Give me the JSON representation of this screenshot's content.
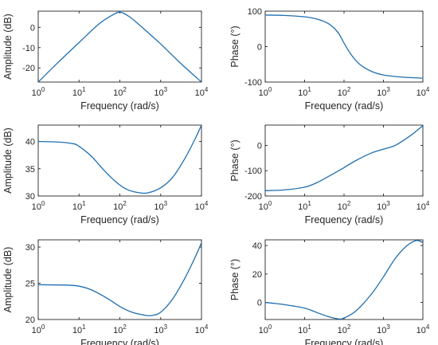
{
  "colors": {
    "series": "#1f6fb0",
    "axis": "#262626"
  },
  "chart_data": [
    {
      "type": "line",
      "xlabel": "Frequency (rad/s)",
      "ylabel": "Amplitude (dB)",
      "xscale": "log",
      "xlim": [
        1,
        10000
      ],
      "ylim": [
        -27,
        8
      ],
      "grid": false,
      "xticks": [
        {
          "value": 1,
          "base": "10",
          "exp": "0"
        },
        {
          "value": 10,
          "base": "10",
          "exp": "1"
        },
        {
          "value": 100,
          "base": "10",
          "exp": "2"
        },
        {
          "value": 1000,
          "base": "10",
          "exp": "3"
        },
        {
          "value": 10000,
          "base": "10",
          "exp": "4"
        }
      ],
      "yticks": [
        {
          "value": -20,
          "label": "-20"
        },
        {
          "value": -10,
          "label": "-10"
        },
        {
          "value": 0,
          "label": "0"
        }
      ],
      "series": [
        {
          "x": [
            1,
            3,
            10,
            30,
            60,
            100,
            170,
            300,
            1000,
            3000,
            10000
          ],
          "y": [
            -27,
            -17.5,
            -7.5,
            1.5,
            5.6,
            7.5,
            5.3,
            1.2,
            -8.2,
            -17.5,
            -27
          ]
        }
      ]
    },
    {
      "type": "line",
      "xlabel": "Frequency (rad/s)",
      "ylabel": "Phase (°)",
      "xscale": "log",
      "xlim": [
        1,
        10000
      ],
      "ylim": [
        -100,
        100
      ],
      "grid": false,
      "xticks": [
        {
          "value": 1,
          "base": "10",
          "exp": "0"
        },
        {
          "value": 10,
          "base": "10",
          "exp": "1"
        },
        {
          "value": 100,
          "base": "10",
          "exp": "2"
        },
        {
          "value": 1000,
          "base": "10",
          "exp": "3"
        },
        {
          "value": 10000,
          "base": "10",
          "exp": "4"
        }
      ],
      "yticks": [
        {
          "value": -100,
          "label": "-100"
        },
        {
          "value": 0,
          "label": "0"
        },
        {
          "value": 100,
          "label": "100"
        }
      ],
      "series": [
        {
          "x": [
            1,
            3,
            10,
            20,
            40,
            70,
            100,
            150,
            250,
            500,
            1000,
            3000,
            10000
          ],
          "y": [
            89,
            88,
            84,
            78,
            65,
            40,
            10,
            -22,
            -50,
            -70,
            -80,
            -86,
            -89
          ]
        }
      ]
    },
    {
      "type": "line",
      "xlabel": "Frequency (rad/s)",
      "ylabel": "Amplitude (dB)",
      "xscale": "log",
      "xlim": [
        1,
        10000
      ],
      "ylim": [
        30,
        43
      ],
      "grid": false,
      "xticks": [
        {
          "value": 1,
          "base": "10",
          "exp": "0"
        },
        {
          "value": 10,
          "base": "10",
          "exp": "1"
        },
        {
          "value": 100,
          "base": "10",
          "exp": "2"
        },
        {
          "value": 1000,
          "base": "10",
          "exp": "3"
        },
        {
          "value": 10000,
          "base": "10",
          "exp": "4"
        }
      ],
      "yticks": [
        {
          "value": 30,
          "label": "30"
        },
        {
          "value": 35,
          "label": "35"
        },
        {
          "value": 40,
          "label": "40"
        }
      ],
      "series": [
        {
          "x": [
            1,
            3,
            7,
            10,
            20,
            40,
            80,
            150,
            300,
            500,
            1000,
            2000,
            4000,
            7000,
            10000
          ],
          "y": [
            40,
            39.9,
            39.6,
            39.1,
            37.3,
            34.8,
            32.6,
            31.2,
            30.6,
            30.6,
            31.5,
            33.5,
            37.0,
            40.5,
            43
          ]
        }
      ]
    },
    {
      "type": "line",
      "xlabel": "Frequency (rad/s)",
      "ylabel": "Phase (°)",
      "xscale": "log",
      "xlim": [
        1,
        10000
      ],
      "ylim": [
        -200,
        80
      ],
      "grid": false,
      "xticks": [
        {
          "value": 1,
          "base": "10",
          "exp": "0"
        },
        {
          "value": 10,
          "base": "10",
          "exp": "1"
        },
        {
          "value": 100,
          "base": "10",
          "exp": "2"
        },
        {
          "value": 1000,
          "base": "10",
          "exp": "3"
        },
        {
          "value": 10000,
          "base": "10",
          "exp": "4"
        }
      ],
      "yticks": [
        {
          "value": -200,
          "label": "-200"
        },
        {
          "value": -100,
          "label": "-100"
        },
        {
          "value": 0,
          "label": "0"
        }
      ],
      "series": [
        {
          "x": [
            1,
            3,
            10,
            20,
            40,
            70,
            100,
            200,
            500,
            1000,
            2000,
            5000,
            10000
          ],
          "y": [
            -179,
            -176,
            -165,
            -148,
            -123,
            -102,
            -88,
            -60,
            -30,
            -15,
            0,
            40,
            78
          ]
        }
      ]
    },
    {
      "type": "line",
      "xlabel": "Frequency (rad/s)",
      "ylabel": "Amplitude (dB)",
      "xscale": "log",
      "xlim": [
        1,
        10000
      ],
      "ylim": [
        20,
        31
      ],
      "grid": false,
      "xticks": [
        {
          "value": 1,
          "base": "10",
          "exp": "0"
        },
        {
          "value": 10,
          "base": "10",
          "exp": "1"
        },
        {
          "value": 100,
          "base": "10",
          "exp": "2"
        },
        {
          "value": 1000,
          "base": "10",
          "exp": "3"
        },
        {
          "value": 10000,
          "base": "10",
          "exp": "4"
        }
      ],
      "yticks": [
        {
          "value": 20,
          "label": "20"
        },
        {
          "value": 25,
          "label": "25"
        },
        {
          "value": 30,
          "label": "30"
        }
      ],
      "series": [
        {
          "x": [
            1,
            5,
            10,
            20,
            50,
            100,
            200,
            400,
            600,
            1000,
            2000,
            4000,
            7000,
            10000
          ],
          "y": [
            24.8,
            24.75,
            24.6,
            24.1,
            22.9,
            21.8,
            21.0,
            20.6,
            20.55,
            21.0,
            22.9,
            25.8,
            28.6,
            30.6
          ]
        }
      ]
    },
    {
      "type": "line",
      "xlabel": "Frequency (rad/s)",
      "ylabel": "Phase (°)",
      "xscale": "log",
      "xlim": [
        1,
        10000
      ],
      "ylim": [
        -12,
        44
      ],
      "grid": false,
      "xticks": [
        {
          "value": 1,
          "base": "10",
          "exp": "0"
        },
        {
          "value": 10,
          "base": "10",
          "exp": "1"
        },
        {
          "value": 100,
          "base": "10",
          "exp": "2"
        },
        {
          "value": 1000,
          "base": "10",
          "exp": "3"
        },
        {
          "value": 10000,
          "base": "10",
          "exp": "4"
        }
      ],
      "yticks": [
        {
          "value": 0,
          "label": "0"
        },
        {
          "value": 20,
          "label": "20"
        },
        {
          "value": 40,
          "label": "40"
        }
      ],
      "series": [
        {
          "x": [
            1,
            3,
            10,
            20,
            40,
            70,
            100,
            200,
            500,
            1000,
            2000,
            4000,
            7000,
            10000
          ],
          "y": [
            0,
            -1.5,
            -4,
            -7,
            -10,
            -11.5,
            -11,
            -6,
            6,
            18,
            31,
            40,
            43.5,
            42
          ]
        }
      ]
    }
  ]
}
